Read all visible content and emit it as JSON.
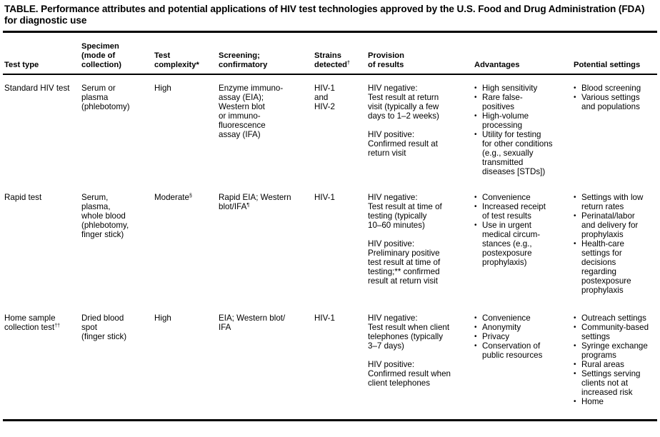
{
  "title": "TABLE. Performance attributes and potential applications of HIV test technologies approved by the U.S. Food and Drug Administration (FDA) for diagnostic use",
  "columns": [
    {
      "label": "Test type"
    },
    {
      "label": "Specimen\n(mode of\ncollection)"
    },
    {
      "label": "Test\ncomplexity*"
    },
    {
      "label": "Screening;\nconfirmatory"
    },
    {
      "label": "Strains\ndetected",
      "sup": "†"
    },
    {
      "label": "Provision\nof results"
    },
    {
      "label": "Advantages"
    },
    {
      "label": "Potential settings"
    }
  ],
  "rows": [
    {
      "test_type": {
        "text": "Standard HIV test"
      },
      "specimen": {
        "text": "Serum or\nplasma\n(phlebotomy)"
      },
      "complexity": {
        "text": "High"
      },
      "screening": {
        "text": "Enzyme immuno-\nassay (EIA);\nWestern blot\nor immuno-\nfluorescence\nassay (IFA)"
      },
      "strains": {
        "text": "HIV-1\nand\nHIV-2"
      },
      "provision": [
        "HIV negative:\nTest result at return\nvisit (typically a few\ndays to 1–2 weeks)",
        "HIV positive:\nConfirmed result at\nreturn visit"
      ],
      "advantages": [
        "High sensitivity",
        "Rare false-\npositives",
        "High-volume\nprocessing",
        "Utility for testing\nfor other conditions\n(e.g., sexually\ntransmitted\ndiseases [STDs])"
      ],
      "settings": [
        "Blood screening",
        "Various settings\nand populations"
      ]
    },
    {
      "test_type": {
        "text": "Rapid test"
      },
      "specimen": {
        "text": "Serum,\nplasma,\nwhole blood\n(phlebotomy,\nfinger stick)"
      },
      "complexity": {
        "text": "Moderate",
        "sup": "§"
      },
      "screening": {
        "text": "Rapid EIA; Western\nblot/IFA",
        "sup": "¶"
      },
      "strains": {
        "text": "HIV-1"
      },
      "provision": [
        "HIV negative:\nTest result at time of\ntesting (typically\n10–60 minutes)",
        "HIV positive:\nPreliminary positive\ntest result at time of\ntesting;** confirmed\nresult at return visit"
      ],
      "advantages": [
        "Convenience",
        "Increased receipt\nof test results",
        "Use in urgent\nmedical circum-\nstances (e.g.,\npostexposure\nprophylaxis)"
      ],
      "settings": [
        "Settings with low\nreturn rates",
        "Perinatal/labor\nand delivery for\nprophylaxis",
        "Health-care\nsettings for\ndecisions\nregarding\npostexposure\nprophylaxis"
      ]
    },
    {
      "test_type": {
        "text": "Home sample\ncollection test",
        "sup": "††"
      },
      "specimen": {
        "text": "Dried blood\nspot\n(finger stick)"
      },
      "complexity": {
        "text": "High"
      },
      "screening": {
        "text": "EIA; Western blot/\nIFA"
      },
      "strains": {
        "text": "HIV-1"
      },
      "provision": [
        "HIV negative:\nTest result when client\ntelephones (typically\n3–7 days)",
        "HIV positive:\nConfirmed result when\nclient telephones"
      ],
      "advantages": [
        "Convenience",
        "Anonymity",
        "Privacy",
        "Conservation of\npublic resources"
      ],
      "settings": [
        "Outreach settings",
        "Community-based\nsettings",
        "Syringe exchange\nprograms",
        "Rural areas",
        "Settings serving\nclients not at\nincreased  risk",
        "Home"
      ]
    }
  ]
}
